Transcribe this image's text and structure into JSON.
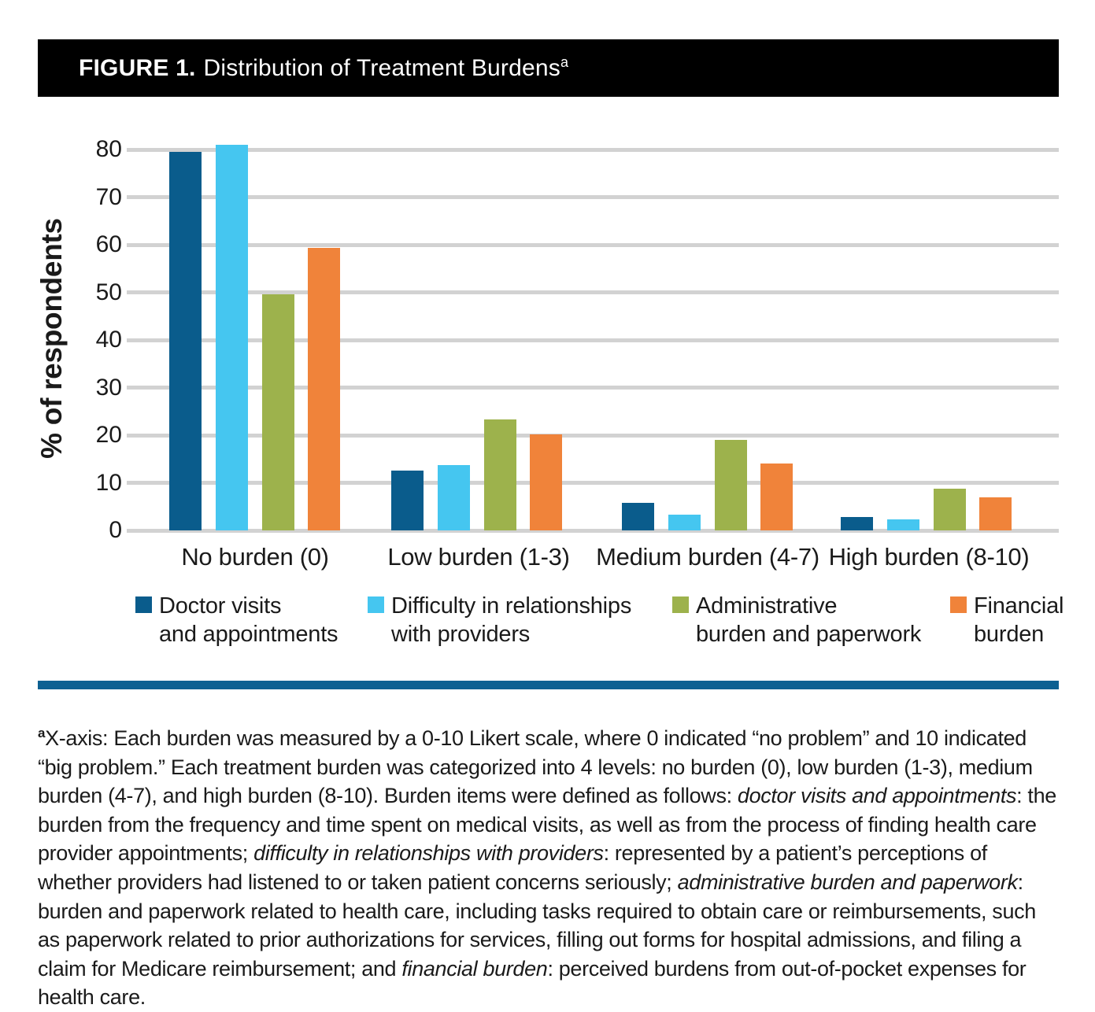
{
  "figure_header": {
    "label": "FIGURE 1.",
    "title": "Distribution of Treatment Burdens",
    "footnote_marker": "a"
  },
  "chart_data": {
    "type": "bar",
    "title": "Distribution of Treatment Burdens",
    "ylabel": "% of respondents",
    "xlabel": "",
    "ylim": [
      0,
      80
    ],
    "ytick_step": 10,
    "grid": true,
    "legend_position": "bottom",
    "categories": [
      "No burden (0)",
      "Low burden (1-3)",
      "Medium burden (4-7)",
      "High burden (8-10)"
    ],
    "series": [
      {
        "name": "Doctor visits and appointments",
        "legend_lines": [
          "Doctor visits",
          "and appointments"
        ],
        "color": "#0a5c8c",
        "values": [
          79.5,
          12.6,
          5.8,
          2.8
        ]
      },
      {
        "name": "Difficulty in relationships with providers",
        "legend_lines": [
          "Difficulty in relationships",
          "with providers"
        ],
        "color": "#45c6f0",
        "values": [
          81.0,
          13.8,
          3.3,
          2.3
        ]
      },
      {
        "name": "Administrative burden and paperwork",
        "legend_lines": [
          "Administrative",
          "burden and paperwork"
        ],
        "color": "#9db24c",
        "values": [
          49.6,
          23.3,
          19.0,
          8.7
        ]
      },
      {
        "name": "Financial burden",
        "legend_lines": [
          "Financial",
          "burden"
        ],
        "color": "#f0833a",
        "values": [
          59.3,
          20.2,
          14.1,
          6.9
        ]
      }
    ]
  },
  "footnote": {
    "marker": "a",
    "segments": [
      {
        "italic": false,
        "text": "X-axis: Each burden was measured by a 0-10 Likert scale, where 0 indicated “no problem” and 10 indicated “big problem.” Each treatment burden was categorized into 4 levels: no burden (0), low burden (1-3), medium burden (4-7), and high burden (8-10). Burden items were defined as follows: "
      },
      {
        "italic": true,
        "text": "doctor visits and appointments"
      },
      {
        "italic": false,
        "text": ": the burden from the frequency and time spent on medical visits, as well as from the process of finding health care provider appointments; "
      },
      {
        "italic": true,
        "text": "difficulty in relationships with providers"
      },
      {
        "italic": false,
        "text": ": represented by a patient’s perceptions of whether providers had listened to or taken patient concerns seriously; "
      },
      {
        "italic": true,
        "text": "administrative burden and paperwork"
      },
      {
        "italic": false,
        "text": ": burden and paperwork related to health care, including tasks required to obtain care or reimbursements, such as paperwork related to prior authorizations for services, filling out forms for hospital admissions, and filing a claim for Medicare reimbursement; and "
      },
      {
        "italic": true,
        "text": "financial burden"
      },
      {
        "italic": false,
        "text": ": perceived burdens from out-of-pocket expenses for health care."
      }
    ]
  },
  "colors": {
    "header_bg": "#000000",
    "header_text": "#ffffff",
    "gridline": "#d2d2d2",
    "divider": "#0d6192",
    "text": "#1a1a1a"
  }
}
